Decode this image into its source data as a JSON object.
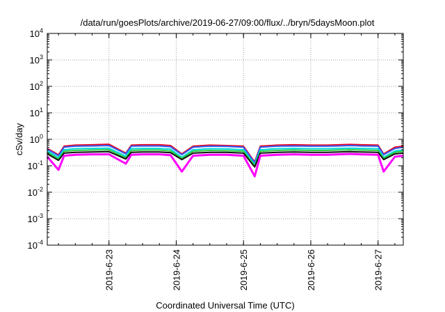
{
  "chart_data": {
    "type": "line",
    "title": "/data/run/goesPlots/archive/2019-06-27/09:00/flux/../bryn/5daysMoon.plot",
    "xlabel": "Coordinated Universal Time (UTC)",
    "ylabel": "cSv/day",
    "y_scale": "log",
    "ylim": [
      0.0001,
      10000
    ],
    "xlim": [
      "2019-06-22T02:00",
      "2019-06-27T09:00"
    ],
    "y_ticks": [
      {
        "base": "10",
        "exp": "4"
      },
      {
        "base": "10",
        "exp": "3"
      },
      {
        "base": "10",
        "exp": "2"
      },
      {
        "base": "10",
        "exp": "1"
      },
      {
        "base": "10",
        "exp": "0"
      },
      {
        "base": "10",
        "exp": "-1"
      },
      {
        "base": "10",
        "exp": "-2"
      },
      {
        "base": "10",
        "exp": "-3"
      },
      {
        "base": "10",
        "exp": "-4"
      }
    ],
    "x_ticks": [
      "2019-6-23",
      "2019-6-24",
      "2019-6-25",
      "2019-6-26",
      "2019-6-27"
    ],
    "grid": true,
    "legend": "none",
    "x": [
      "2019-06-22T02:00",
      "2019-06-22T06:00",
      "2019-06-22T08:00",
      "2019-06-22T12:00",
      "2019-06-22T18:00",
      "2019-06-23T00:00",
      "2019-06-23T06:00",
      "2019-06-23T08:00",
      "2019-06-23T12:00",
      "2019-06-23T18:00",
      "2019-06-23T22:00",
      "2019-06-24T02:00",
      "2019-06-24T06:00",
      "2019-06-24T12:00",
      "2019-06-24T18:00",
      "2019-06-25T00:00",
      "2019-06-25T04:00",
      "2019-06-25T06:00",
      "2019-06-25T12:00",
      "2019-06-25T18:00",
      "2019-06-26T00:00",
      "2019-06-26T06:00",
      "2019-06-26T10:00",
      "2019-06-26T14:00",
      "2019-06-26T18:00",
      "2019-06-27T00:00",
      "2019-06-27T02:00",
      "2019-06-27T06:00",
      "2019-06-27T09:00"
    ],
    "series": [
      {
        "color": "#e8001c",
        "values": [
          0.45,
          0.26,
          0.55,
          0.6,
          0.62,
          0.65,
          0.3,
          0.6,
          0.62,
          0.62,
          0.58,
          0.28,
          0.55,
          0.6,
          0.58,
          0.55,
          0.14,
          0.55,
          0.6,
          0.62,
          0.6,
          0.6,
          0.62,
          0.64,
          0.62,
          0.6,
          0.28,
          0.5,
          0.55
        ]
      },
      {
        "color": "#3060ff",
        "values": [
          0.42,
          0.24,
          0.5,
          0.55,
          0.56,
          0.58,
          0.28,
          0.55,
          0.56,
          0.56,
          0.52,
          0.26,
          0.5,
          0.55,
          0.54,
          0.5,
          0.13,
          0.5,
          0.55,
          0.56,
          0.55,
          0.55,
          0.56,
          0.58,
          0.56,
          0.55,
          0.26,
          0.45,
          0.5
        ]
      },
      {
        "color": "#00d8d8",
        "values": [
          0.36,
          0.2,
          0.4,
          0.44,
          0.45,
          0.46,
          0.23,
          0.44,
          0.45,
          0.45,
          0.42,
          0.21,
          0.4,
          0.44,
          0.43,
          0.4,
          0.11,
          0.4,
          0.44,
          0.45,
          0.44,
          0.44,
          0.45,
          0.46,
          0.45,
          0.44,
          0.21,
          0.36,
          0.4
        ]
      },
      {
        "color": "#2ecc40",
        "values": [
          0.32,
          0.18,
          0.35,
          0.38,
          0.39,
          0.4,
          0.2,
          0.38,
          0.39,
          0.39,
          0.36,
          0.19,
          0.35,
          0.38,
          0.37,
          0.35,
          0.1,
          0.35,
          0.38,
          0.39,
          0.38,
          0.38,
          0.39,
          0.4,
          0.39,
          0.38,
          0.19,
          0.32,
          0.35
        ]
      },
      {
        "color": "#101010",
        "values": [
          0.28,
          0.16,
          0.3,
          0.32,
          0.33,
          0.34,
          0.18,
          0.32,
          0.33,
          0.33,
          0.31,
          0.17,
          0.3,
          0.32,
          0.32,
          0.3,
          0.09,
          0.3,
          0.32,
          0.33,
          0.32,
          0.32,
          0.33,
          0.34,
          0.33,
          0.32,
          0.17,
          0.28,
          0.3
        ]
      },
      {
        "color": "#ff00ff",
        "values": [
          0.22,
          0.07,
          0.24,
          0.26,
          0.27,
          0.27,
          0.12,
          0.26,
          0.27,
          0.27,
          0.25,
          0.06,
          0.24,
          0.26,
          0.26,
          0.24,
          0.04,
          0.24,
          0.26,
          0.27,
          0.26,
          0.26,
          0.27,
          0.28,
          0.27,
          0.26,
          0.06,
          0.22,
          0.24
        ]
      }
    ]
  }
}
